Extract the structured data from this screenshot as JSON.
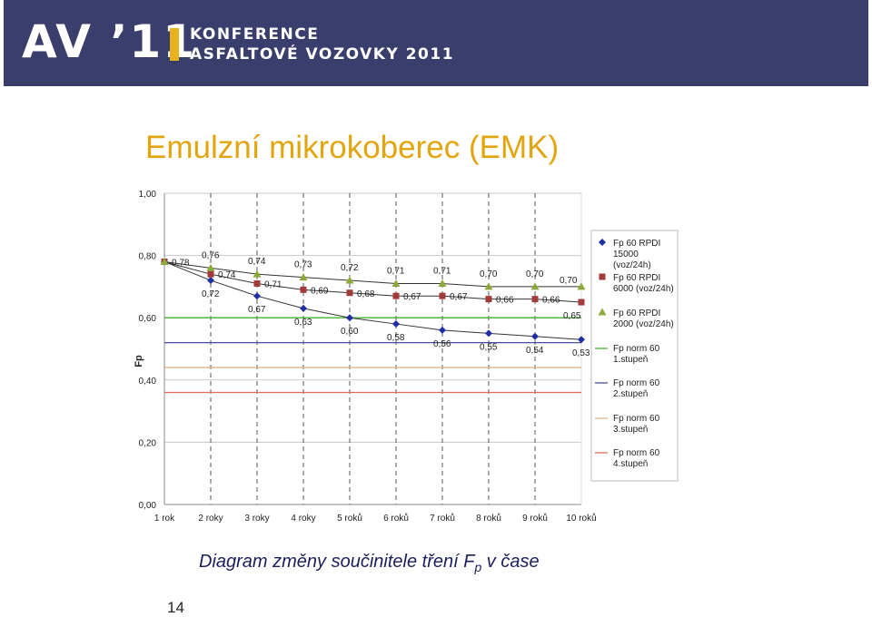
{
  "banner": {
    "logo_text": "AV ’11",
    "line1": "KONFERENCE",
    "line2": "ASFALTOVÉ VOZOVKY 2011"
  },
  "slide": {
    "title": "Emulzní mikrokoberec (EMK)",
    "caption_main": "Diagram změny součinitele tření F",
    "caption_sub": "p",
    "caption_end": " v čase",
    "page_number": "14"
  },
  "colors": {
    "banner_bg": "#3a3e6c",
    "accent_bar": "#e8b21f",
    "title": "#e2a50e",
    "caption": "#1a1f5a",
    "series_15000": "#1f2fa3",
    "series_6000": "#a33a3a",
    "series_2000": "#8caa3a",
    "norm1": "#4caf3a",
    "norm2": "#4a4f9a",
    "norm3": "#e0b48a",
    "norm4": "#e06a5a"
  },
  "chart_data": {
    "type": "line",
    "ylabel": "Fp",
    "ylim": [
      0,
      1
    ],
    "yticks": [
      "0,00",
      "0,20",
      "0,40",
      "0,60",
      "0,80",
      "1,00"
    ],
    "ytick_values": [
      0,
      0.2,
      0.4,
      0.6,
      0.8,
      1.0
    ],
    "categories": [
      "1 rok",
      "2 roky",
      "3 roky",
      "4 roky",
      "5 roků",
      "6 roků",
      "7 roků",
      "8 roků",
      "9 roků",
      "10 roků"
    ],
    "grid": "dashed vertical lines at categories, solid horizontal lines at y ticks",
    "legend_position": "right",
    "series": [
      {
        "name": "Fp 60 RPDI 15000 (voz/24h)",
        "legend_lines": [
          "Fp 60  RPDI",
          "15000",
          "(voz/24h)"
        ],
        "marker": "diamond",
        "color": "#1f2fa3",
        "values": [
          0.78,
          0.72,
          0.67,
          0.63,
          0.6,
          0.58,
          0.56,
          0.55,
          0.54,
          0.53
        ],
        "labels": [
          "0,78",
          "0,72",
          "0,67",
          "0,63",
          "0,60",
          "0,58",
          "0,56",
          "0,55",
          "0,54",
          "0,53"
        ]
      },
      {
        "name": "Fp 60 RPDI 6000 (voz/24h)",
        "legend_lines": [
          "Fp 60  RPDI",
          "6000 (voz/24h)"
        ],
        "marker": "square",
        "color": "#a33a3a",
        "values": [
          0.78,
          0.74,
          0.71,
          0.69,
          0.68,
          0.67,
          0.67,
          0.66,
          0.66,
          0.65
        ],
        "labels": [
          "",
          "0,74",
          "0,71",
          "0,69",
          "0,68",
          "0,67",
          "0,67",
          "0,66",
          "0,66",
          "0,65"
        ]
      },
      {
        "name": "Fp 60 RPDI 2000 (voz/24h)",
        "legend_lines": [
          "Fp 60  RPDI",
          "2000 (voz/24h)"
        ],
        "marker": "triangle",
        "color": "#8caa3a",
        "values": [
          0.78,
          0.76,
          0.74,
          0.73,
          0.72,
          0.71,
          0.71,
          0.7,
          0.7,
          0.7
        ],
        "labels": [
          "",
          "0,76",
          "0,74",
          "0,73",
          "0,72",
          "0,71",
          "0,71",
          "0,70",
          "0,70",
          "0,70"
        ]
      }
    ],
    "reference_lines": [
      {
        "legend_lines": [
          "Fp norm 60",
          "1.stupeň"
        ],
        "value": 0.6,
        "color": "#4caf3a"
      },
      {
        "legend_lines": [
          "Fp norm 60",
          "2.stupeň"
        ],
        "value": 0.52,
        "color": "#4a4f9a"
      },
      {
        "legend_lines": [
          "Fp norm 60",
          "3.stupeň"
        ],
        "value": 0.44,
        "color": "#e0b48a"
      },
      {
        "legend_lines": [
          "Fp norm 60",
          "4.stupeň"
        ],
        "value": 0.36,
        "color": "#e06a5a"
      }
    ]
  }
}
